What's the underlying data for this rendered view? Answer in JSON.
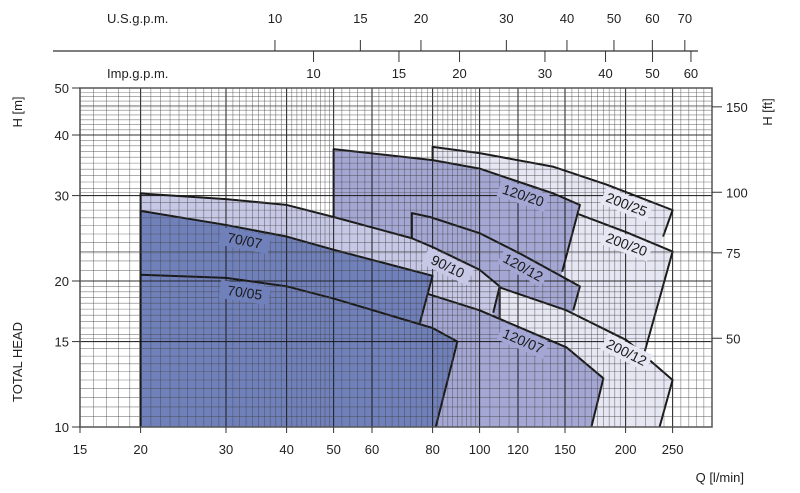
{
  "chart_data": {
    "type": "area",
    "x_axis": {
      "label": "Q [l/min]",
      "scale": "log",
      "range": [
        15,
        300
      ],
      "ticks": [
        15,
        20,
        30,
        40,
        50,
        60,
        80,
        100,
        120,
        150,
        200,
        250
      ]
    },
    "y_axis": {
      "label": "H [m]",
      "title": "TOTAL HEAD",
      "scale": "log",
      "range": [
        10,
        50
      ],
      "ticks": [
        10,
        15,
        20,
        30,
        40,
        50
      ]
    },
    "y2_axis": {
      "label": "H [ft]",
      "ticks": [
        50,
        75,
        100,
        150
      ]
    },
    "top_axes": [
      {
        "label": "U.S.g.p.m.",
        "ticks": [
          10,
          15,
          20,
          30,
          40,
          50,
          60,
          70
        ]
      },
      {
        "label": "Imp.g.p.m.",
        "ticks": [
          10,
          15,
          20,
          30,
          40,
          50,
          60
        ]
      }
    ],
    "grid": true,
    "colors": {
      "200": "#e7e7f4",
      "120": "#a4a7d3",
      "90": "#c6c8e6",
      "70": "#7080bb",
      "line": "#1a1a1a"
    },
    "series": [
      {
        "name": "200/25",
        "family": "200",
        "curve": [
          [
            80,
            37.8
          ],
          [
            100,
            36.7
          ],
          [
            142,
            34.4
          ],
          [
            183,
            31.6
          ],
          [
            250,
            28.0
          ]
        ],
        "limit_end": [
          239,
          24.7
        ]
      },
      {
        "name": "200/20",
        "family": "200",
        "curve": [
          [
            100,
            31.6
          ],
          [
            161,
            27.4
          ],
          [
            201,
            25.2
          ],
          [
            250,
            23.0
          ]
        ],
        "limit_end": [
          219,
          14.3
        ]
      },
      {
        "name": "120/20",
        "family": "120",
        "curve": [
          [
            50,
            37.4
          ],
          [
            80,
            35.5
          ],
          [
            100,
            34.1
          ],
          [
            142,
            30.3
          ],
          [
            161,
            28.7
          ]
        ],
        "limit_end": [
          148,
          20.9
        ]
      },
      {
        "name": "120/12",
        "family": "120",
        "curve": [
          [
            72.5,
            27.6
          ],
          [
            79,
            27.1
          ],
          [
            100,
            25.1
          ],
          [
            121,
            22.8
          ],
          [
            161,
            19.5
          ]
        ],
        "limit_end": [
          156,
          17.4
        ]
      },
      {
        "name": "200/12",
        "family": "200",
        "curve": [
          [
            110,
            19.4
          ],
          [
            151,
            17.4
          ],
          [
            201,
            15.1
          ],
          [
            250,
            12.5
          ]
        ],
        "limit_end": [
          235,
          10
        ]
      },
      {
        "name": "90/10",
        "family": "90",
        "curve": [
          [
            20,
            30.3
          ],
          [
            30,
            29.5
          ],
          [
            40,
            28.7
          ],
          [
            50,
            27.1
          ],
          [
            72.5,
            24.5
          ],
          [
            80,
            23.5
          ],
          [
            100,
            21.1
          ],
          [
            110,
            19.5
          ]
        ],
        "limit_end": [
          106.7,
          17.2
        ]
      },
      {
        "name": "120/07",
        "family": "120",
        "curve": [
          [
            50,
            21.9
          ],
          [
            79.7,
            18.7
          ],
          [
            100,
            17.4
          ],
          [
            151,
            14.6
          ],
          [
            180,
            12.6
          ]
        ],
        "limit_end": [
          170,
          10
        ]
      },
      {
        "name": "70/07",
        "family": "70",
        "curve": [
          [
            20,
            27.9
          ],
          [
            30,
            26.1
          ],
          [
            40,
            24.7
          ],
          [
            50,
            23.2
          ],
          [
            80,
            20.5
          ]
        ],
        "limit_end": [
          75.3,
          16.4
        ]
      },
      {
        "name": "70/05",
        "family": "70",
        "curve": [
          [
            20,
            20.6
          ],
          [
            30,
            20.3
          ],
          [
            40,
            19.5
          ],
          [
            50,
            18.4
          ],
          [
            80,
            16.0
          ],
          [
            90,
            15.0
          ]
        ],
        "limit_end": [
          81.2,
          10
        ]
      }
    ]
  }
}
